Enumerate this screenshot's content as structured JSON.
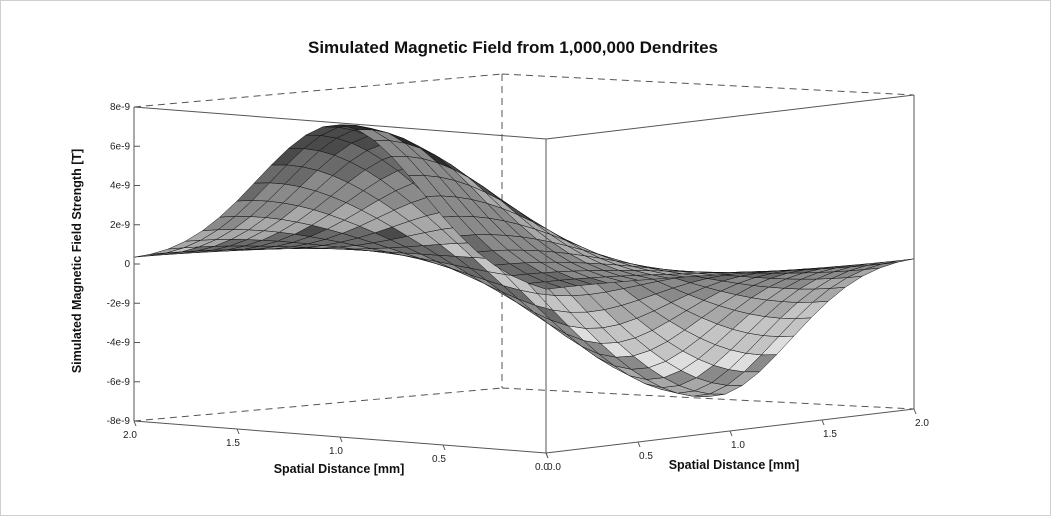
{
  "chart_data": {
    "type": "surface",
    "title": "Simulated Magnetic Field from 1,000,000 Dendrites",
    "zlabel": "Simulated Magnetic Field Strength [T]",
    "xlabel": "Spatial Distance [mm]",
    "ylabel": "Spatial Distance [mm]",
    "z_ticks": [
      {
        "value": 8e-09,
        "label": "8e-9"
      },
      {
        "value": 6e-09,
        "label": "6e-9"
      },
      {
        "value": 4e-09,
        "label": "4e-9"
      },
      {
        "value": 2e-09,
        "label": "2e-9"
      },
      {
        "value": 0,
        "label": "0"
      },
      {
        "value": -2e-09,
        "label": "-2e-9"
      },
      {
        "value": -4e-09,
        "label": "-4e-9"
      },
      {
        "value": -6e-09,
        "label": "-6e-9"
      },
      {
        "value": -8e-09,
        "label": "-8e-9"
      }
    ],
    "x_ticks": [
      {
        "value": 2.0,
        "label": "2.0"
      },
      {
        "value": 1.5,
        "label": "1.5"
      },
      {
        "value": 1.0,
        "label": "1.0"
      },
      {
        "value": 0.5,
        "label": "0.5"
      },
      {
        "value": 0.0,
        "label": "0.0"
      }
    ],
    "y_ticks": [
      {
        "value": 0.0,
        "label": "0.0"
      },
      {
        "value": 0.5,
        "label": "0.5"
      },
      {
        "value": 1.0,
        "label": "1.0"
      },
      {
        "value": 1.5,
        "label": "1.5"
      },
      {
        "value": 2.0,
        "label": "2.0"
      }
    ],
    "xlim": [
      0,
      2
    ],
    "ylim": [
      0,
      2
    ],
    "zlim": [
      -8e-09,
      8e-09
    ],
    "surface": {
      "shape": "dipole",
      "peak": {
        "x": 1.0,
        "y": 0.0,
        "z": 8e-09
      },
      "trough": {
        "x": 1.0,
        "y": 2.0,
        "z": -8e-09
      }
    }
  }
}
